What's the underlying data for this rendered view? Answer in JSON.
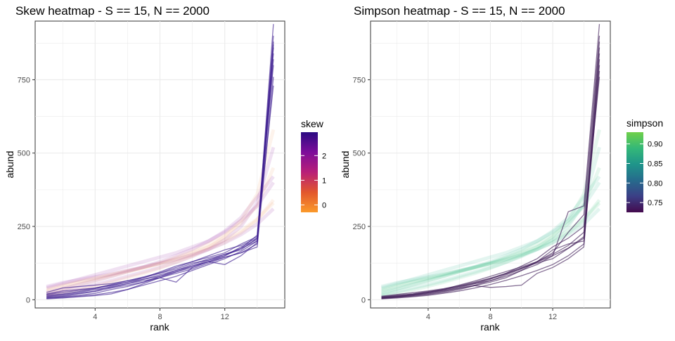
{
  "chart_data": [
    {
      "type": "line",
      "title": "Skew heatmap - S == 15, N == 2000",
      "xlabel": "rank",
      "ylabel": "abund",
      "xlim": [
        0.3,
        15.7
      ],
      "ylim": [
        -28,
        950
      ],
      "x_ticks": [
        4,
        8,
        12
      ],
      "y_ticks": [
        0,
        250,
        500,
        750
      ],
      "grid": true,
      "legend": {
        "title": "skew",
        "position": "right",
        "type": "colorbar",
        "range": [
          -0.3,
          2.95
        ],
        "ticks": [
          0,
          1,
          2
        ],
        "colors": [
          "#fb9a2b",
          "#e2572c",
          "#b81f78",
          "#7d0d9a",
          "#2b0a82"
        ]
      },
      "highlight_color": "#3a1a8e",
      "background_color_range": [
        "#f0a06e",
        "#8a1a9a"
      ],
      "x": [
        1,
        2,
        3,
        4,
        5,
        6,
        7,
        8,
        9,
        10,
        11,
        12,
        13,
        14,
        15
      ],
      "highlight_series": [
        {
          "values": [
            5,
            8,
            12,
            17,
            25,
            35,
            50,
            65,
            80,
            100,
            120,
            140,
            165,
            200,
            940
          ]
        },
        {
          "values": [
            8,
            12,
            20,
            28,
            40,
            50,
            60,
            80,
            95,
            110,
            130,
            150,
            175,
            220,
            900
          ]
        },
        {
          "values": [
            10,
            15,
            22,
            30,
            45,
            55,
            65,
            75,
            90,
            105,
            125,
            145,
            160,
            190,
            880
          ]
        },
        {
          "values": [
            12,
            18,
            25,
            35,
            42,
            55,
            70,
            85,
            100,
            120,
            140,
            155,
            170,
            210,
            820
          ]
        },
        {
          "values": [
            15,
            20,
            28,
            38,
            48,
            60,
            75,
            90,
            105,
            125,
            135,
            150,
            180,
            205,
            800
          ]
        },
        {
          "values": [
            20,
            30,
            35,
            40,
            50,
            60,
            70,
            80,
            100,
            115,
            130,
            145,
            160,
            180,
            760
          ]
        },
        {
          "values": [
            18,
            25,
            32,
            40,
            52,
            65,
            78,
            92,
            110,
            130,
            145,
            160,
            190,
            215,
            730
          ]
        },
        {
          "values": [
            25,
            40,
            45,
            50,
            55,
            65,
            75,
            95,
            115,
            130,
            150,
            170,
            185,
            210,
            860
          ]
        },
        {
          "values": [
            6,
            10,
            15,
            22,
            35,
            45,
            60,
            75,
            95,
            115,
            135,
            155,
            175,
            200,
            840
          ]
        },
        {
          "values": [
            3,
            6,
            10,
            14,
            20,
            35,
            55,
            75,
            60,
            110,
            130,
            120,
            150,
            195,
            870
          ]
        }
      ],
      "background_series": [
        {
          "values": [
            30,
            45,
            60,
            72,
            85,
            98,
            110,
            125,
            140,
            160,
            180,
            205,
            235,
            275,
            330
          ]
        },
        {
          "values": [
            40,
            55,
            70,
            85,
            100,
            115,
            130,
            145,
            160,
            180,
            200,
            230,
            270,
            320,
            400
          ]
        },
        {
          "values": [
            20,
            35,
            50,
            65,
            80,
            95,
            110,
            125,
            145,
            165,
            190,
            220,
            260,
            320,
            450
          ]
        },
        {
          "values": [
            15,
            28,
            40,
            52,
            65,
            80,
            95,
            110,
            128,
            148,
            172,
            205,
            250,
            330,
            520
          ]
        },
        {
          "values": [
            35,
            50,
            62,
            74,
            86,
            98,
            110,
            122,
            136,
            152,
            172,
            196,
            228,
            272,
            340
          ]
        },
        {
          "values": [
            25,
            38,
            52,
            66,
            80,
            96,
            112,
            130,
            150,
            172,
            200,
            234,
            280,
            350,
            420
          ]
        },
        {
          "values": [
            12,
            22,
            34,
            46,
            60,
            75,
            90,
            108,
            128,
            150,
            178,
            215,
            270,
            360,
            580
          ]
        },
        {
          "values": [
            45,
            58,
            68,
            78,
            88,
            100,
            112,
            124,
            138,
            154,
            172,
            194,
            222,
            258,
            310
          ]
        }
      ]
    },
    {
      "type": "line",
      "title": "Simpson heatmap - S == 15, N == 2000",
      "xlabel": "rank",
      "ylabel": "abund",
      "xlim": [
        0.3,
        15.7
      ],
      "ylim": [
        -28,
        950
      ],
      "x_ticks": [
        4,
        8,
        12
      ],
      "y_ticks": [
        0,
        250,
        500,
        750
      ],
      "grid": true,
      "legend": {
        "title": "simpson",
        "position": "right",
        "type": "colorbar",
        "range": [
          0.725,
          0.93
        ],
        "ticks": [
          0.75,
          0.8,
          0.85,
          0.9
        ],
        "colors": [
          "#440a4e",
          "#3b3f86",
          "#266b8c",
          "#1f958a",
          "#34b878",
          "#6fd04a"
        ]
      },
      "highlight_color": "#3d1a55",
      "background_color_range": [
        "#3ec07a",
        "#26b08a"
      ],
      "x": [
        1,
        2,
        3,
        4,
        5,
        6,
        7,
        8,
        9,
        10,
        11,
        12,
        13,
        14,
        15
      ],
      "highlight_series": [
        {
          "values": [
            4,
            8,
            12,
            18,
            25,
            35,
            48,
            60,
            75,
            100,
            120,
            150,
            300,
            320,
            940
          ]
        },
        {
          "values": [
            6,
            10,
            15,
            22,
            30,
            40,
            50,
            65,
            85,
            105,
            130,
            160,
            230,
            290,
            900
          ]
        },
        {
          "values": [
            8,
            12,
            18,
            25,
            32,
            42,
            55,
            70,
            90,
            115,
            140,
            180,
            210,
            250,
            880
          ]
        },
        {
          "values": [
            10,
            15,
            20,
            28,
            35,
            45,
            55,
            65,
            80,
            100,
            130,
            170,
            190,
            200,
            860
          ]
        },
        {
          "values": [
            5,
            9,
            14,
            20,
            28,
            38,
            48,
            42,
            45,
            50,
            90,
            110,
            140,
            180,
            820
          ]
        },
        {
          "values": [
            7,
            11,
            16,
            24,
            34,
            46,
            58,
            72,
            88,
            108,
            125,
            140,
            175,
            210,
            800
          ]
        },
        {
          "values": [
            3,
            6,
            10,
            15,
            22,
            30,
            40,
            52,
            66,
            82,
            100,
            120,
            150,
            190,
            780
          ]
        },
        {
          "values": [
            12,
            18,
            24,
            30,
            38,
            48,
            60,
            74,
            90,
            108,
            128,
            150,
            176,
            215,
            840
          ]
        },
        {
          "values": [
            9,
            14,
            19,
            26,
            36,
            50,
            64,
            80,
            96,
            112,
            130,
            155,
            185,
            230,
            760
          ]
        }
      ],
      "background_series": [
        {
          "values": [
            30,
            45,
            60,
            72,
            85,
            98,
            110,
            125,
            140,
            160,
            180,
            205,
            235,
            275,
            330
          ]
        },
        {
          "values": [
            40,
            55,
            70,
            85,
            100,
            115,
            130,
            145,
            160,
            180,
            200,
            230,
            270,
            320,
            400
          ]
        },
        {
          "values": [
            20,
            35,
            50,
            65,
            80,
            95,
            110,
            125,
            145,
            165,
            190,
            220,
            260,
            320,
            450
          ]
        },
        {
          "values": [
            15,
            28,
            40,
            52,
            65,
            80,
            95,
            110,
            128,
            148,
            172,
            205,
            250,
            330,
            520
          ]
        },
        {
          "values": [
            35,
            50,
            62,
            74,
            86,
            98,
            110,
            122,
            136,
            152,
            172,
            196,
            228,
            272,
            340
          ]
        },
        {
          "values": [
            25,
            38,
            52,
            66,
            80,
            96,
            112,
            130,
            150,
            172,
            200,
            234,
            280,
            350,
            420
          ]
        },
        {
          "values": [
            12,
            22,
            34,
            46,
            60,
            75,
            90,
            108,
            128,
            150,
            178,
            215,
            270,
            360,
            580
          ]
        },
        {
          "values": [
            45,
            58,
            68,
            78,
            88,
            100,
            112,
            124,
            138,
            154,
            172,
            194,
            222,
            258,
            310
          ]
        }
      ]
    }
  ]
}
